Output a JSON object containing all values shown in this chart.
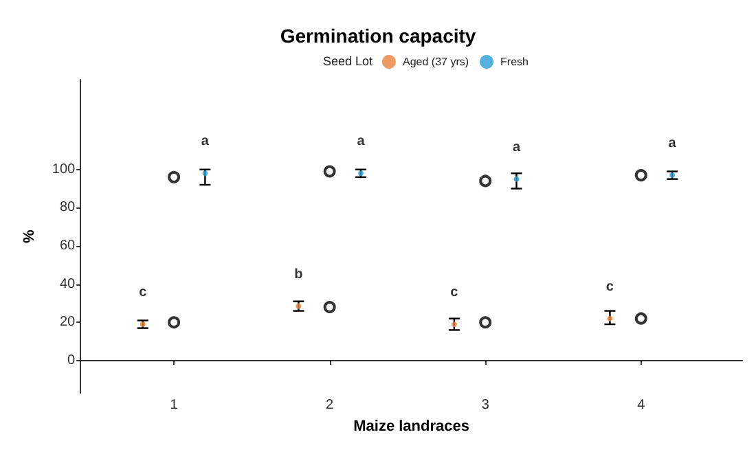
{
  "chart_data": {
    "type": "scatter",
    "title": "Germination capacity",
    "legend_title": "Seed Lot",
    "legend": "top",
    "xlabel": "Maize landraces",
    "ylabel": "%",
    "xlim": [
      0.4,
      4.65
    ],
    "xticks": [
      1,
      2,
      3,
      4
    ],
    "ylim": [
      -17,
      147
    ],
    "yticks": [
      0,
      20,
      40,
      60,
      80,
      100
    ],
    "series": [
      {
        "name": "Aged (37 yrs)",
        "color": "#e8803a",
        "x": [
          0.8,
          1.8,
          2.8,
          3.8
        ],
        "values": [
          19,
          28.5,
          19,
          22
        ],
        "errors": [
          [
            17,
            21
          ],
          [
            26,
            31
          ],
          [
            16,
            22
          ],
          [
            19,
            26
          ]
        ]
      },
      {
        "name": "Fresh",
        "color": "#2a9fd6",
        "x": [
          1.2,
          2.2,
          3.2,
          4.2
        ],
        "values": [
          98,
          98,
          95,
          97
        ],
        "errors": [
          [
            92,
            100
          ],
          [
            96,
            100
          ],
          [
            90,
            98
          ],
          [
            95,
            99
          ]
        ]
      },
      {
        "color": "#000000",
        "marker": "circle",
        "x": [
          1,
          2,
          3,
          4
        ],
        "values": [
          20,
          28,
          20,
          22
        ]
      },
      {
        "color": "#000000",
        "marker": "circle",
        "x": [
          1,
          2,
          3,
          4
        ],
        "values": [
          96,
          99,
          94,
          97
        ]
      }
    ],
    "annotations": [
      {
        "text": "c",
        "x": 0.8,
        "y": 19
      },
      {
        "text": "b",
        "x": 1.8,
        "y": 28.5
      },
      {
        "text": "c",
        "x": 2.8,
        "y": 19
      },
      {
        "text": "c",
        "x": 3.8,
        "y": 22
      },
      {
        "text": "a",
        "x": 1.2,
        "y": 98
      },
      {
        "text": "a",
        "x": 2.2,
        "y": 98
      },
      {
        "text": "a",
        "x": 3.2,
        "y": 95
      },
      {
        "text": "a",
        "x": 4.2,
        "y": 97
      }
    ]
  }
}
